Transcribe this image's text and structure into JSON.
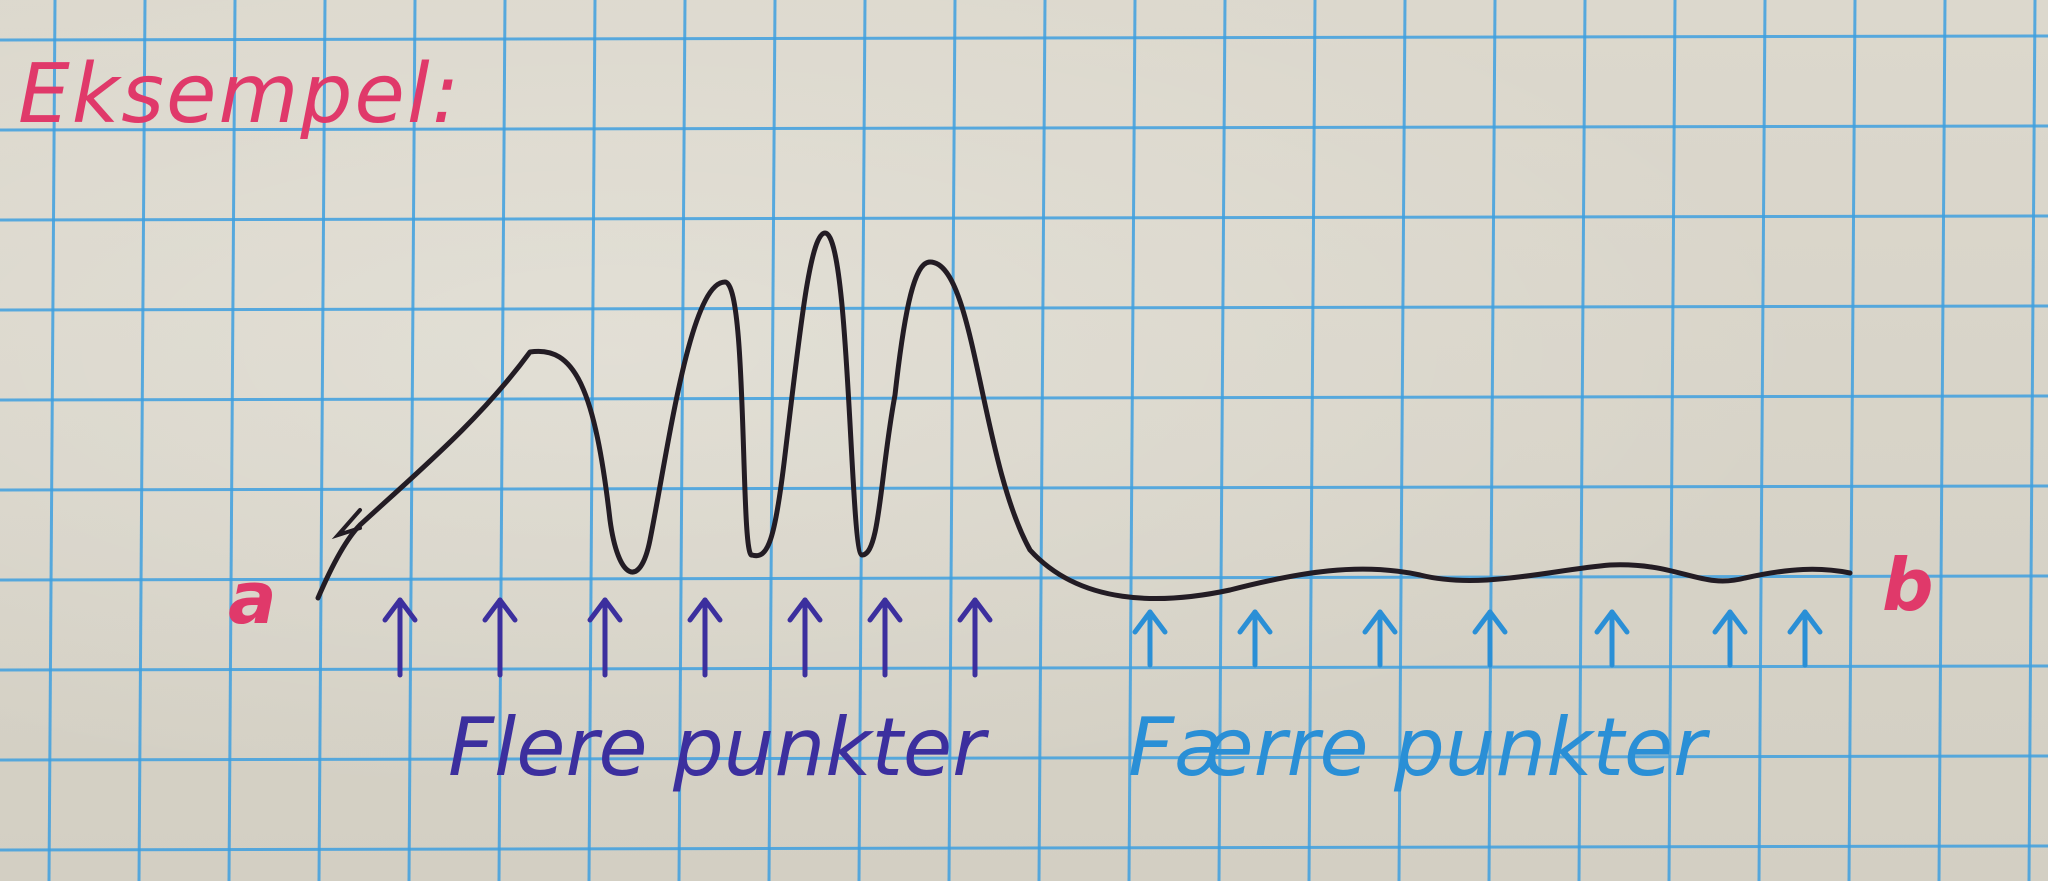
{
  "title": "Eksempel:",
  "endpoints": {
    "start": "a",
    "end": "b"
  },
  "labels": {
    "dense": "Flere punkter",
    "sparse": "Færre punkter"
  },
  "arrows": {
    "dense_count": 7,
    "sparse_count": 7
  },
  "colors": {
    "paper": "#d8d4c9",
    "grid": "#3fa0e0",
    "curve": "#231c24",
    "title": "#e0396a",
    "endpoint": "#e0396a",
    "dense": "#3c2f9e",
    "sparse": "#2a8fd6"
  }
}
